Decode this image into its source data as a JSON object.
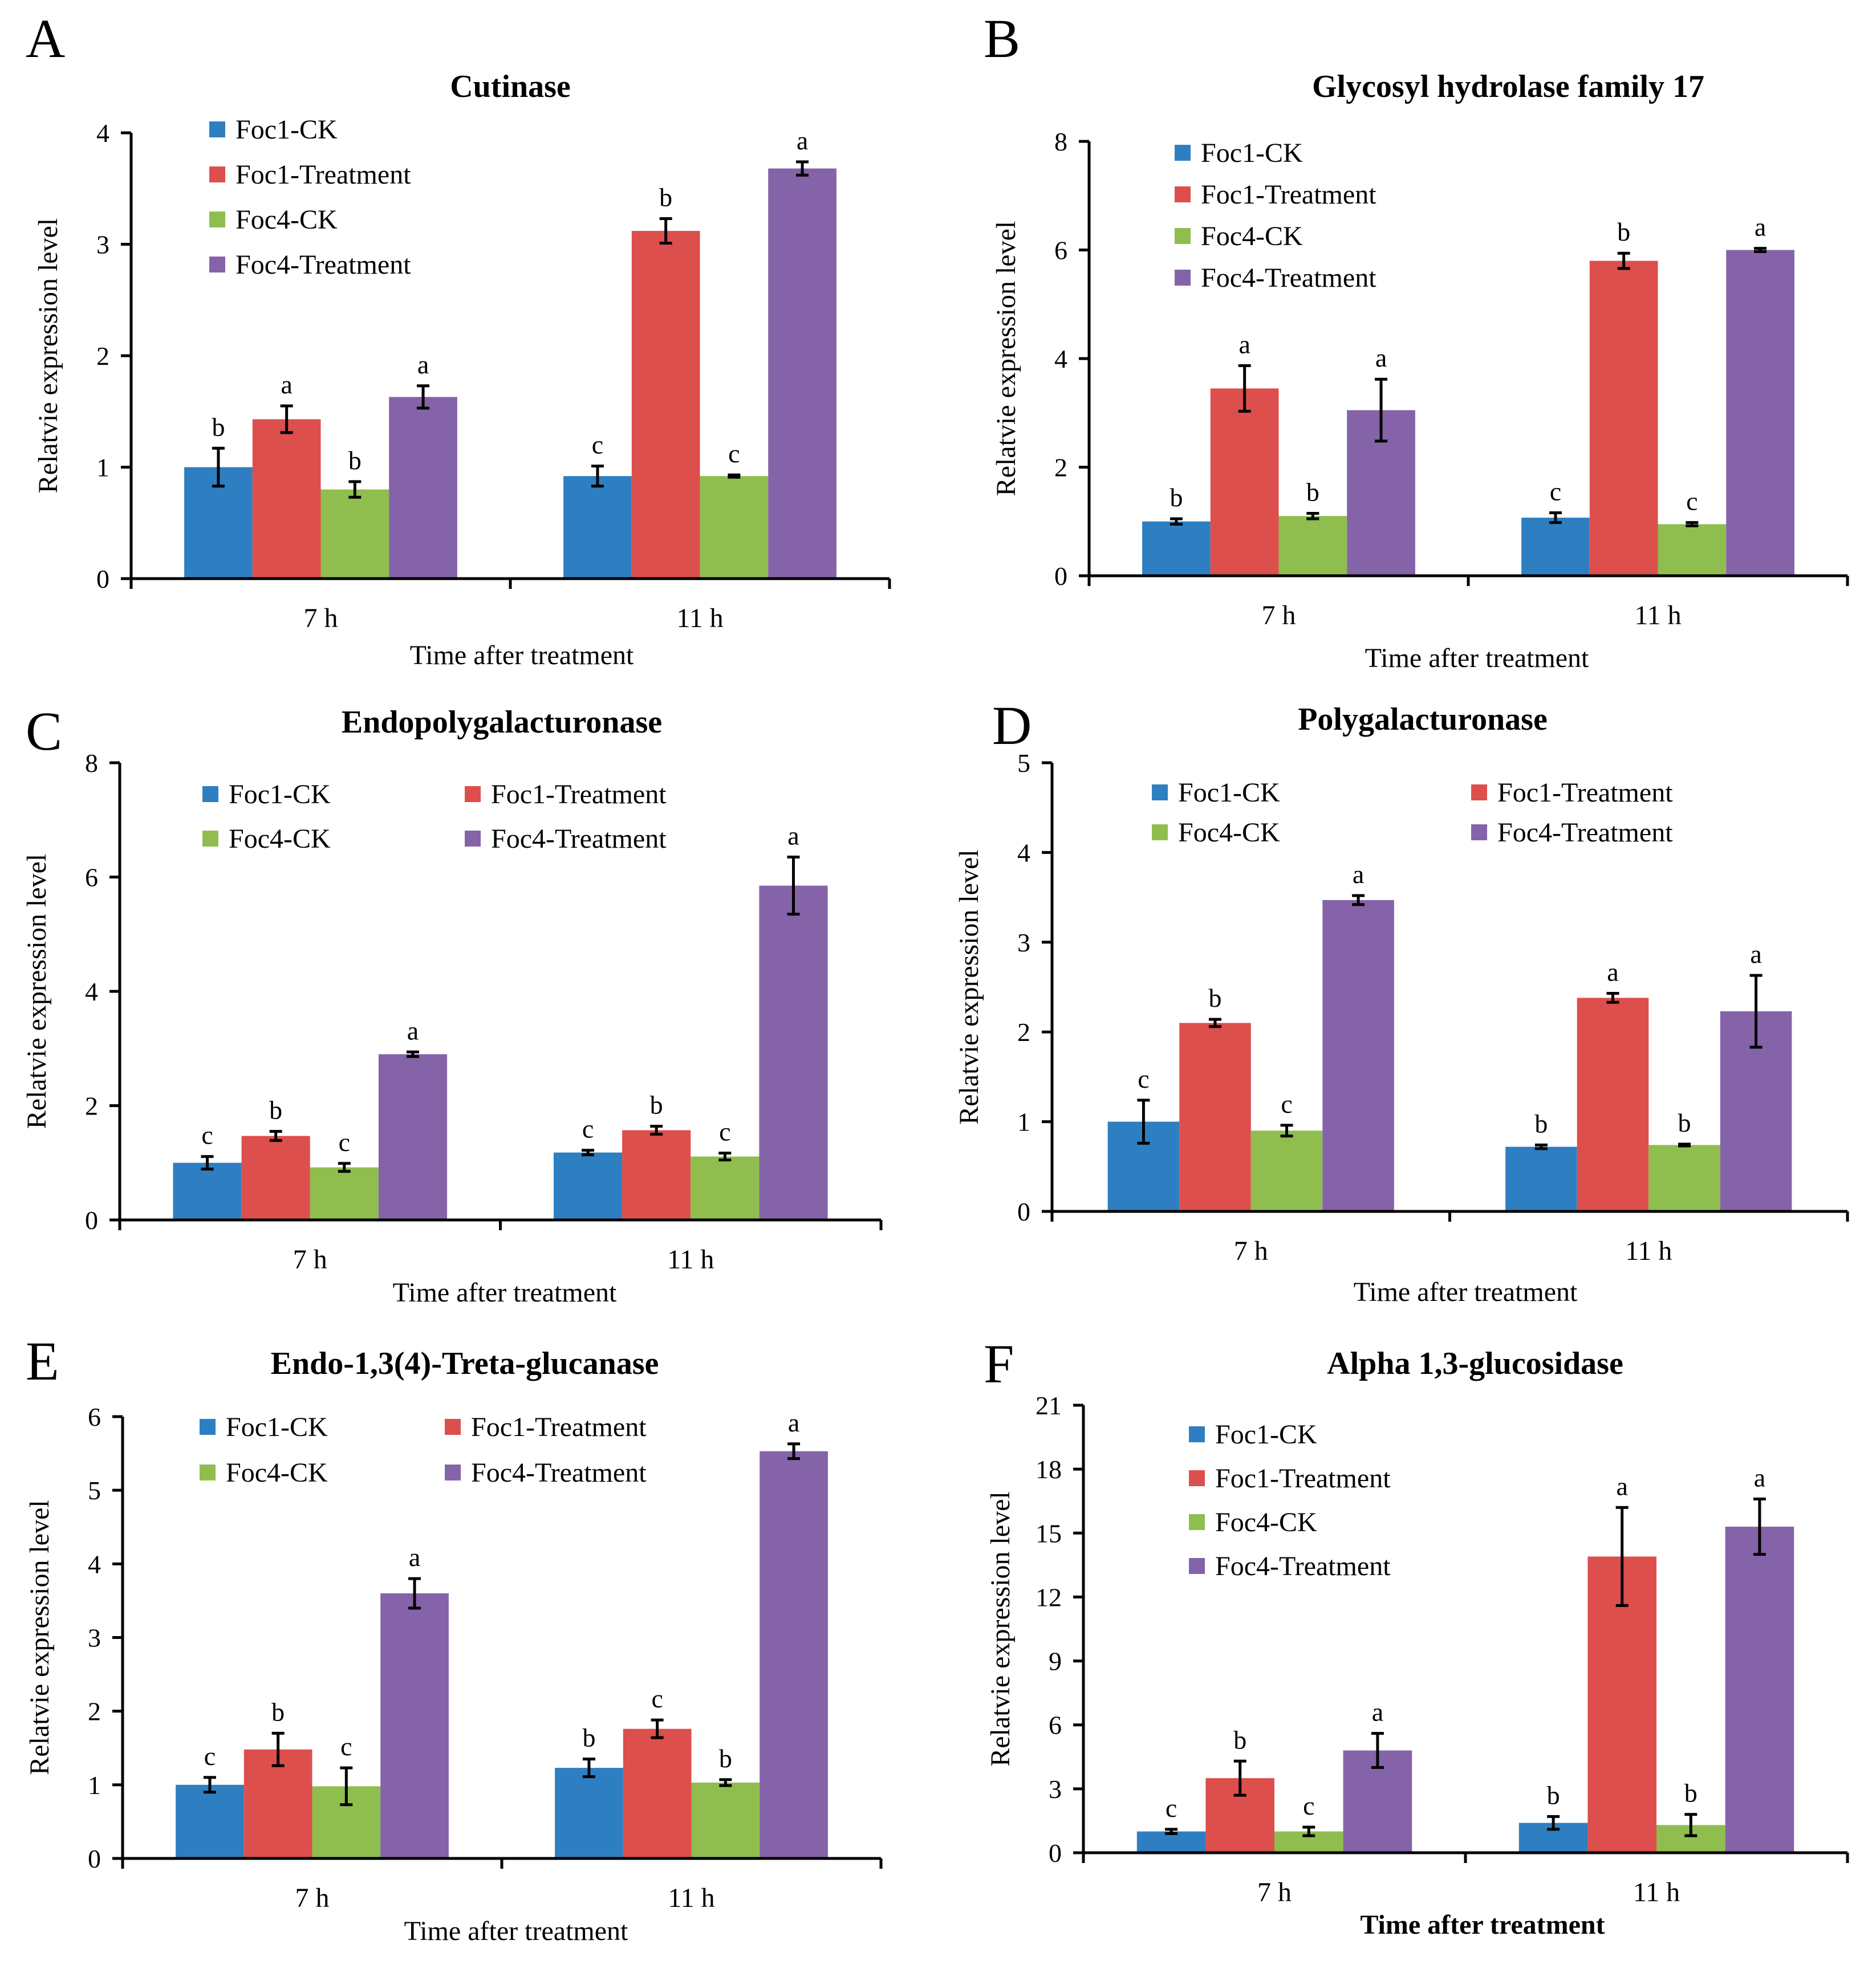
{
  "series_colors": [
    "#2e7fc1",
    "#dd4f4c",
    "#8fbe4f",
    "#8563a8"
  ],
  "chart_data": [
    {
      "type": "bar",
      "letter": "A",
      "title": "Cutinase",
      "categories": [
        "7 h",
        "11 h"
      ],
      "xlabel": "Time after treatment",
      "xlabel_bold": false,
      "ylabel": "Relatvie expression level",
      "ylim": [
        0,
        4
      ],
      "yticks": [
        "0",
        "1",
        "2",
        "3",
        "4"
      ],
      "legend_layout": "column",
      "series": [
        {
          "name": "Foc1-CK",
          "values": [
            1.0,
            0.92
          ],
          "errors": [
            0.17,
            0.09
          ],
          "labels": [
            "b",
            "c"
          ]
        },
        {
          "name": "Foc1-Treatment",
          "values": [
            1.43,
            3.12
          ],
          "errors": [
            0.12,
            0.11
          ],
          "labels": [
            "a",
            "b"
          ]
        },
        {
          "name": "Foc4-CK",
          "values": [
            0.8,
            0.92
          ],
          "errors": [
            0.07,
            0.01
          ],
          "labels": [
            "b",
            "c"
          ]
        },
        {
          "name": "Foc4-Treatment",
          "values": [
            1.63,
            3.68
          ],
          "errors": [
            0.1,
            0.06
          ],
          "labels": [
            "a",
            "a"
          ]
        }
      ]
    },
    {
      "type": "bar",
      "letter": "B",
      "title": "Glycosyl hydrolase family 17",
      "categories": [
        "7 h",
        "11 h"
      ],
      "xlabel": "Time after treatment",
      "xlabel_bold": false,
      "ylabel": "Relatvie expression level",
      "ylim": [
        0,
        8
      ],
      "yticks": [
        "0",
        "2",
        "4",
        "6",
        "8"
      ],
      "legend_layout": "column",
      "series": [
        {
          "name": "Foc1-CK",
          "values": [
            1.0,
            1.07
          ],
          "errors": [
            0.05,
            0.09
          ],
          "labels": [
            "b",
            "c"
          ]
        },
        {
          "name": "Foc1-Treatment",
          "values": [
            3.45,
            5.8
          ],
          "errors": [
            0.42,
            0.14
          ],
          "labels": [
            "a",
            "b"
          ]
        },
        {
          "name": "Foc4-CK",
          "values": [
            1.1,
            0.95
          ],
          "errors": [
            0.05,
            0.03
          ],
          "labels": [
            "b",
            "c"
          ]
        },
        {
          "name": "Foc4-Treatment",
          "values": [
            3.05,
            6.0
          ],
          "errors": [
            0.57,
            0.03
          ],
          "labels": [
            "a",
            "a"
          ]
        }
      ]
    },
    {
      "type": "bar",
      "letter": "C",
      "title": "Endopolygalacturonase",
      "categories": [
        "7 h",
        "11 h"
      ],
      "xlabel": "Time after treatment",
      "xlabel_bold": false,
      "ylabel": "Relatvie expression level",
      "ylim": [
        0,
        8
      ],
      "yticks": [
        "0",
        "2",
        "4",
        "6",
        "8"
      ],
      "legend_layout": "grid",
      "series": [
        {
          "name": "Foc1-CK",
          "values": [
            1.0,
            1.18
          ],
          "errors": [
            0.11,
            0.04
          ],
          "labels": [
            "c",
            "c"
          ]
        },
        {
          "name": "Foc1-Treatment",
          "values": [
            1.47,
            1.57
          ],
          "errors": [
            0.08,
            0.07
          ],
          "labels": [
            "b",
            "b"
          ]
        },
        {
          "name": "Foc4-CK",
          "values": [
            0.92,
            1.11
          ],
          "errors": [
            0.07,
            0.06
          ],
          "labels": [
            "c",
            "c"
          ]
        },
        {
          "name": "Foc4-Treatment",
          "values": [
            2.9,
            5.85
          ],
          "errors": [
            0.04,
            0.5
          ],
          "labels": [
            "a",
            "a"
          ]
        }
      ]
    },
    {
      "type": "bar",
      "letter": "D",
      "title": "Polygalacturonase",
      "categories": [
        "7 h",
        "11 h"
      ],
      "xlabel": "Time after treatment",
      "xlabel_bold": false,
      "ylabel": "Relatvie expression level",
      "ylim": [
        0,
        5
      ],
      "yticks": [
        "0",
        "1",
        "2",
        "3",
        "4",
        "5"
      ],
      "legend_layout": "grid",
      "series": [
        {
          "name": "Foc1-CK",
          "values": [
            1.0,
            0.72
          ],
          "errors": [
            0.24,
            0.02
          ],
          "labels": [
            "c",
            "b"
          ]
        },
        {
          "name": "Foc1-Treatment",
          "values": [
            2.1,
            2.38
          ],
          "errors": [
            0.04,
            0.05
          ],
          "labels": [
            "b",
            "a"
          ]
        },
        {
          "name": "Foc4-CK",
          "values": [
            0.9,
            0.74
          ],
          "errors": [
            0.06,
            0.01
          ],
          "labels": [
            "c",
            "b"
          ]
        },
        {
          "name": "Foc4-Treatment",
          "values": [
            3.47,
            2.23
          ],
          "errors": [
            0.05,
            0.4
          ],
          "labels": [
            "a",
            "a"
          ]
        }
      ]
    },
    {
      "type": "bar",
      "letter": "E",
      "title": "Endo-1,3(4)-Treta-glucanase",
      "categories": [
        "7 h",
        "11 h"
      ],
      "xlabel": "Time after treatment",
      "xlabel_bold": false,
      "ylabel": "Relatvie expression level",
      "ylim": [
        0,
        6
      ],
      "yticks": [
        "0",
        "1",
        "2",
        "3",
        "4",
        "5",
        "6"
      ],
      "legend_layout": "grid",
      "series": [
        {
          "name": "Foc1-CK",
          "values": [
            1.0,
            1.23
          ],
          "errors": [
            0.1,
            0.12
          ],
          "labels": [
            "c",
            "b"
          ]
        },
        {
          "name": "Foc1-Treatment",
          "values": [
            1.48,
            1.76
          ],
          "errors": [
            0.22,
            0.12
          ],
          "labels": [
            "b",
            "c"
          ]
        },
        {
          "name": "Foc4-CK",
          "values": [
            0.98,
            1.03
          ],
          "errors": [
            0.25,
            0.04
          ],
          "labels": [
            "c",
            "b"
          ]
        },
        {
          "name": "Foc4-Treatment",
          "values": [
            3.6,
            5.53
          ],
          "errors": [
            0.2,
            0.1
          ],
          "labels": [
            "a",
            "a"
          ]
        }
      ]
    },
    {
      "type": "bar",
      "letter": "F",
      "title": "Alpha 1,3-glucosidase",
      "categories": [
        "7 h",
        "11 h"
      ],
      "xlabel": "Time after treatment",
      "xlabel_bold": true,
      "ylabel": "Relatvie expression level",
      "ylim": [
        0,
        21
      ],
      "yticks": [
        "0",
        "3",
        "6",
        "9",
        "12",
        "15",
        "18",
        "21"
      ],
      "legend_layout": "column",
      "series": [
        {
          "name": "Foc1-CK",
          "values": [
            1.0,
            1.4
          ],
          "errors": [
            0.1,
            0.3
          ],
          "labels": [
            "c",
            "b"
          ]
        },
        {
          "name": "Foc1-Treatment",
          "values": [
            3.5,
            13.9
          ],
          "errors": [
            0.8,
            2.3
          ],
          "labels": [
            "b",
            "a"
          ]
        },
        {
          "name": "Foc4-CK",
          "values": [
            1.0,
            1.3
          ],
          "errors": [
            0.2,
            0.5
          ],
          "labels": [
            "c",
            "b"
          ]
        },
        {
          "name": "Foc4-Treatment",
          "values": [
            4.8,
            15.3
          ],
          "errors": [
            0.8,
            1.3
          ],
          "labels": [
            "a",
            "a"
          ]
        }
      ]
    }
  ]
}
